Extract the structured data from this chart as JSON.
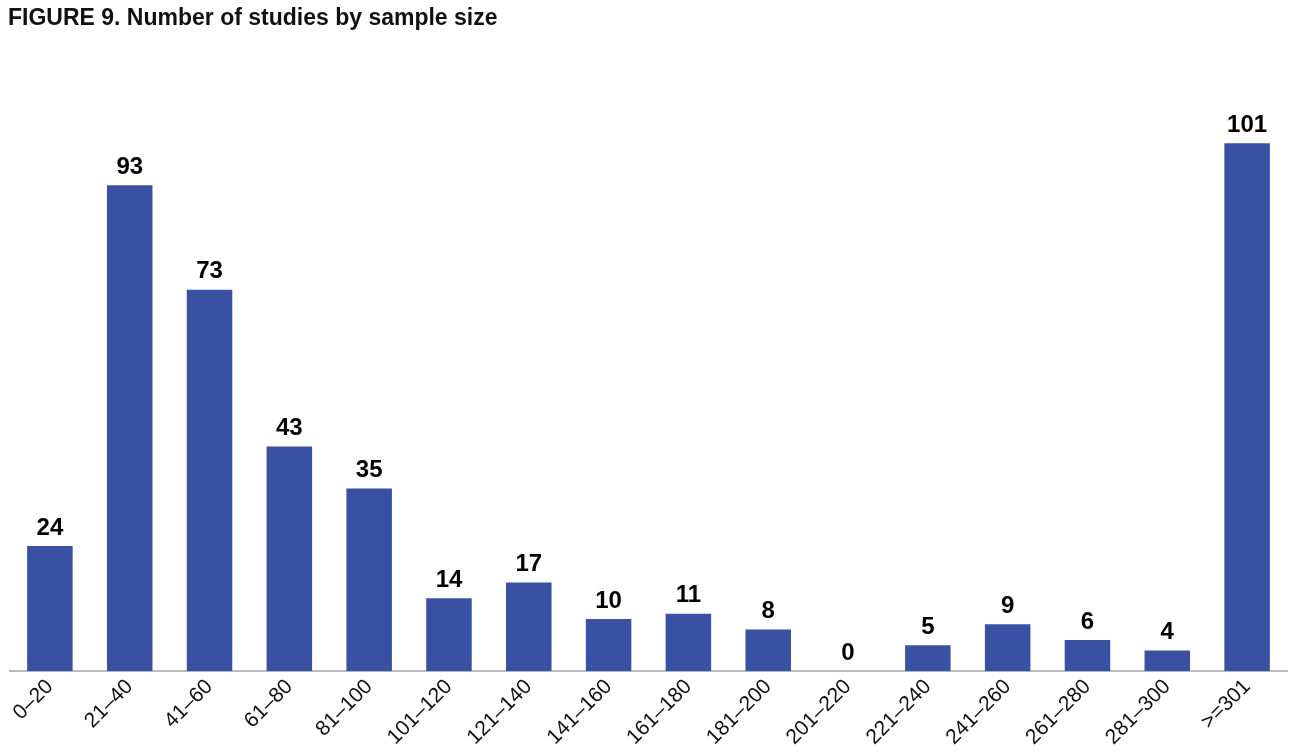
{
  "chart_data": {
    "type": "bar",
    "title": "FIGURE 9. Number of studies by sample size",
    "categories": [
      "0–20",
      "21–40",
      "41–60",
      "61–80",
      "81–100",
      "101–120",
      "121–140",
      "141–160",
      "161–180",
      "181–200",
      "201–220",
      "221–240",
      "241–260",
      "261–280",
      "281–300",
      ">=301"
    ],
    "values": [
      24,
      93,
      73,
      43,
      35,
      14,
      17,
      10,
      11,
      8,
      0,
      5,
      9,
      6,
      4,
      101
    ],
    "color": "#3a50a3",
    "data_labels": true,
    "tick_labels": "x",
    "grid": false,
    "legend": false
  }
}
